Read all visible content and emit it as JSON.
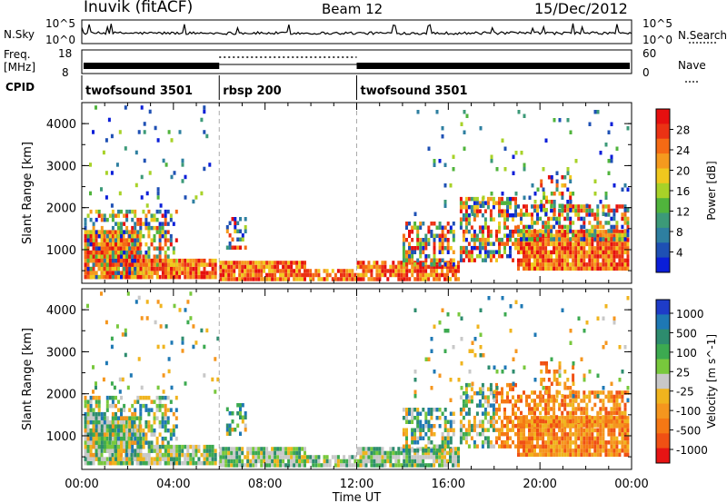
{
  "header": {
    "station": "Inuvik (fitACF)",
    "beam": "Beam 12",
    "date": "15/Dec/2012"
  },
  "left_labels": {
    "nsky": "N.Sky",
    "nsky_top": "10^5",
    "nsky_bottom": "10^0",
    "freq": "Freq.",
    "freq_unit": "[MHz]",
    "freq_top": "18",
    "freq_bottom": "8",
    "cpid": "CPID"
  },
  "right_labels": {
    "nsearch": "N.Search",
    "nsearch_top": "10^5",
    "nsearch_bottom": "10^0",
    "nave": "Nave",
    "nave_top": "60",
    "nave_bottom": "0"
  },
  "cpid_segments": [
    {
      "label": "twofsound 3501",
      "start_hour": 0
    },
    {
      "label": "rbsp 200",
      "start_hour": 6
    },
    {
      "label": "twofsound 3501",
      "start_hour": 12
    }
  ],
  "chart_data": [
    {
      "type": "heatmap",
      "name": "power",
      "ylabel": "Slant Range [km]",
      "y_ticks": [
        "1000",
        "2000",
        "3000",
        "4000"
      ],
      "ylim": [
        200,
        4500
      ],
      "xlim_hours": [
        0,
        24
      ],
      "colorbar": {
        "label": "Power [dB]",
        "ticks": [
          "4",
          "8",
          "12",
          "16",
          "20",
          "24",
          "28"
        ],
        "colors": [
          "#0a1ed8",
          "#1e50b4",
          "#2e7fa0",
          "#3c9a78",
          "#50b43c",
          "#a8d228",
          "#f0c81e",
          "#f59a1e",
          "#f56a14",
          "#eb3214",
          "#e60f0f"
        ]
      }
    },
    {
      "type": "heatmap",
      "name": "velocity",
      "ylabel": "Slant Range [km]",
      "y_ticks": [
        "1000",
        "2000",
        "3000",
        "4000"
      ],
      "ylim": [
        200,
        4500
      ],
      "xlim_hours": [
        0,
        24
      ],
      "x_ticks": [
        "00:00",
        "04:00",
        "08:00",
        "12:00",
        "16:00",
        "20:00",
        "00:00"
      ],
      "xlabel": "Time UT",
      "colorbar": {
        "label": "Velocity [m s^-1]",
        "ticks": [
          "1000",
          "500",
          "100",
          "25",
          "-25",
          "-100",
          "-500",
          "-1000"
        ],
        "colors": [
          "#1e3cc8",
          "#1e78b4",
          "#2d8c6e",
          "#3caa50",
          "#78c83c",
          "#c8c8c8",
          "#f0b41e",
          "#f5961e",
          "#f57814",
          "#f05014",
          "#e61414"
        ]
      }
    }
  ]
}
